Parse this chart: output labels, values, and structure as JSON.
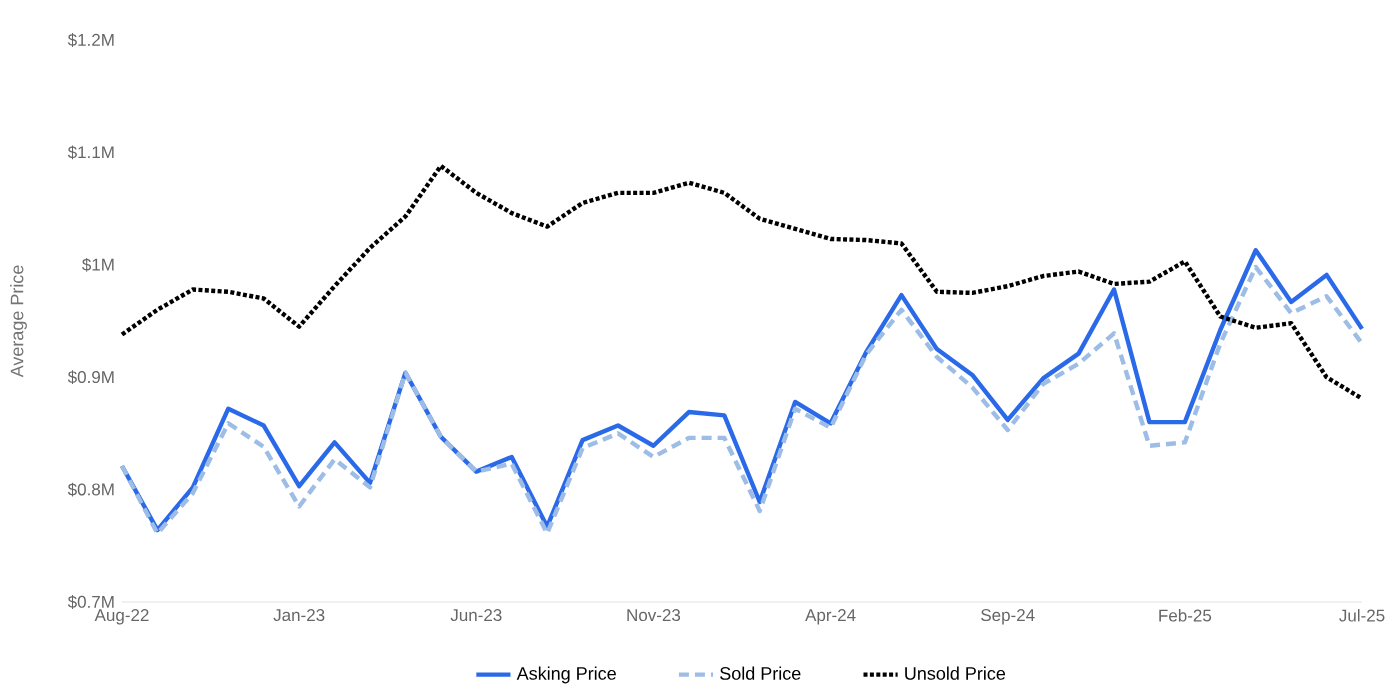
{
  "chart_data": {
    "type": "line",
    "ylabel": "Average Price",
    "categories": [
      "Aug-22",
      null,
      null,
      null,
      null,
      "Jan-23",
      null,
      null,
      null,
      null,
      "Jun-23",
      null,
      null,
      null,
      null,
      "Nov-23",
      null,
      null,
      null,
      null,
      "Apr-24",
      null,
      null,
      null,
      null,
      "Sep-24",
      null,
      null,
      null,
      null,
      "Feb-25",
      null,
      null,
      null,
      null,
      "Jul-25"
    ],
    "ylim": [
      0.7,
      1.2
    ],
    "yticks": [
      {
        "value": 0.7,
        "label": "$0.7M"
      },
      {
        "value": 0.8,
        "label": "$0.8M"
      },
      {
        "value": 0.9,
        "label": "$0.9M"
      },
      {
        "value": 1.0,
        "label": "$1M"
      },
      {
        "value": 1.1,
        "label": "$1.1M"
      },
      {
        "value": 1.2,
        "label": "$1.2M"
      }
    ],
    "legend": "bottom",
    "marker": "none",
    "series": [
      {
        "name": "Asking Price",
        "color": "#2a6ae8",
        "line_style": "solid",
        "values": [
          0.821,
          0.764,
          0.802,
          0.872,
          0.857,
          0.803,
          0.842,
          0.806,
          0.904,
          0.847,
          0.816,
          0.829,
          0.767,
          0.844,
          0.857,
          0.839,
          0.869,
          0.866,
          0.789,
          0.878,
          0.859,
          0.922,
          0.973,
          0.925,
          0.902,
          0.862,
          0.899,
          0.921,
          0.978,
          0.86,
          0.86,
          0.942,
          1.013,
          0.967,
          0.991,
          0.943
        ]
      },
      {
        "name": "Sold Price",
        "color": "#9dbde6",
        "line_style": "dashed",
        "values": [
          0.821,
          0.761,
          0.797,
          0.859,
          0.838,
          0.785,
          0.827,
          0.802,
          0.904,
          0.847,
          0.816,
          0.823,
          0.761,
          0.837,
          0.85,
          0.829,
          0.846,
          0.846,
          0.781,
          0.872,
          0.855,
          0.92,
          0.96,
          0.918,
          0.891,
          0.853,
          0.894,
          0.912,
          0.939,
          0.839,
          0.842,
          0.93,
          0.998,
          0.957,
          0.972,
          0.93
        ]
      },
      {
        "name": "Unsold Price",
        "color": "#000000",
        "line_style": "dotted",
        "values": [
          0.938,
          0.96,
          0.978,
          0.976,
          0.97,
          0.945,
          0.981,
          1.015,
          1.043,
          1.088,
          1.064,
          1.046,
          1.034,
          1.055,
          1.064,
          1.064,
          1.073,
          1.064,
          1.041,
          1.032,
          1.023,
          1.022,
          1.019,
          0.976,
          0.975,
          0.981,
          0.99,
          0.994,
          0.983,
          0.985,
          1.003,
          0.954,
          0.944,
          0.948,
          0.9,
          0.881
        ]
      }
    ]
  }
}
